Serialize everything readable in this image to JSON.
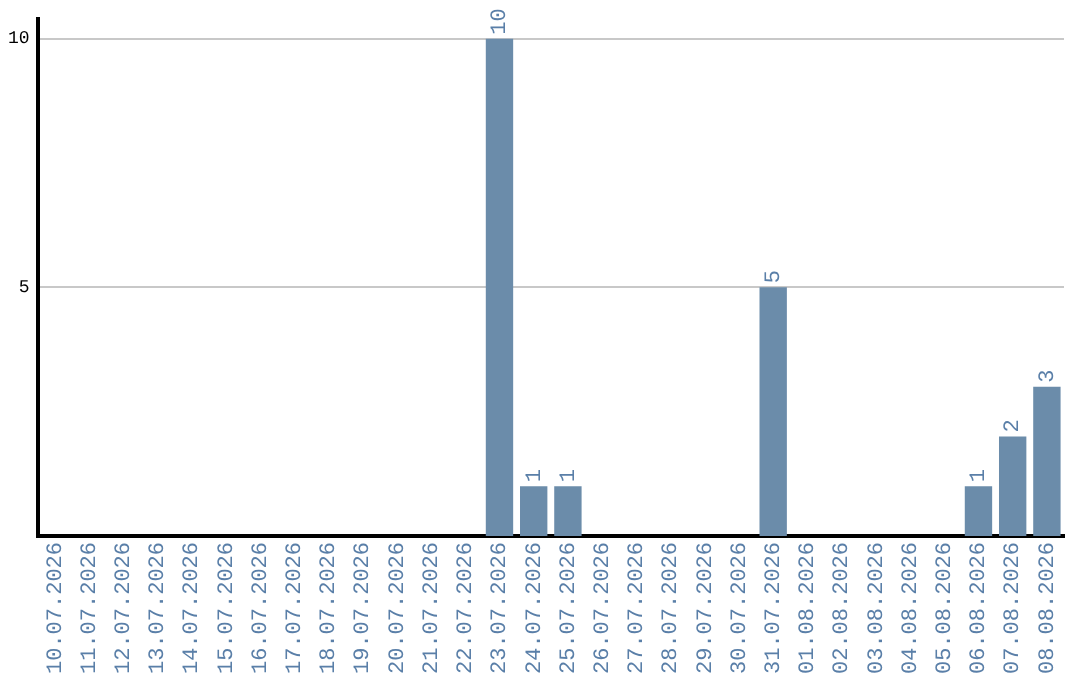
{
  "chart_data": {
    "type": "bar",
    "categories": [
      "10.07.2026",
      "11.07.2026",
      "12.07.2026",
      "13.07.2026",
      "14.07.2026",
      "15.07.2026",
      "16.07.2026",
      "17.07.2026",
      "18.07.2026",
      "19.07.2026",
      "20.07.2026",
      "21.07.2026",
      "22.07.2026",
      "23.07.2026",
      "24.07.2026",
      "25.07.2026",
      "26.07.2026",
      "27.07.2026",
      "28.07.2026",
      "29.07.2026",
      "30.07.2026",
      "31.07.2026",
      "01.08.2026",
      "02.08.2026",
      "03.08.2026",
      "04.08.2026",
      "05.08.2026",
      "06.08.2026",
      "07.08.2026",
      "08.08.2026"
    ],
    "values": [
      0,
      0,
      0,
      0,
      0,
      0,
      0,
      0,
      0,
      0,
      0,
      0,
      0,
      10,
      1,
      1,
      0,
      0,
      0,
      0,
      0,
      5,
      0,
      0,
      0,
      0,
      0,
      1,
      2,
      3
    ],
    "value_labels": [
      null,
      null,
      null,
      null,
      null,
      null,
      null,
      null,
      null,
      null,
      null,
      null,
      null,
      "10",
      "1",
      "1",
      null,
      null,
      null,
      null,
      null,
      "5",
      null,
      null,
      null,
      null,
      null,
      "1",
      "2",
      "3"
    ],
    "color": "#6b8caa",
    "ylim": [
      0,
      10.4
    ],
    "yticks": [
      5,
      10
    ],
    "grid": "y",
    "legend": false
  }
}
